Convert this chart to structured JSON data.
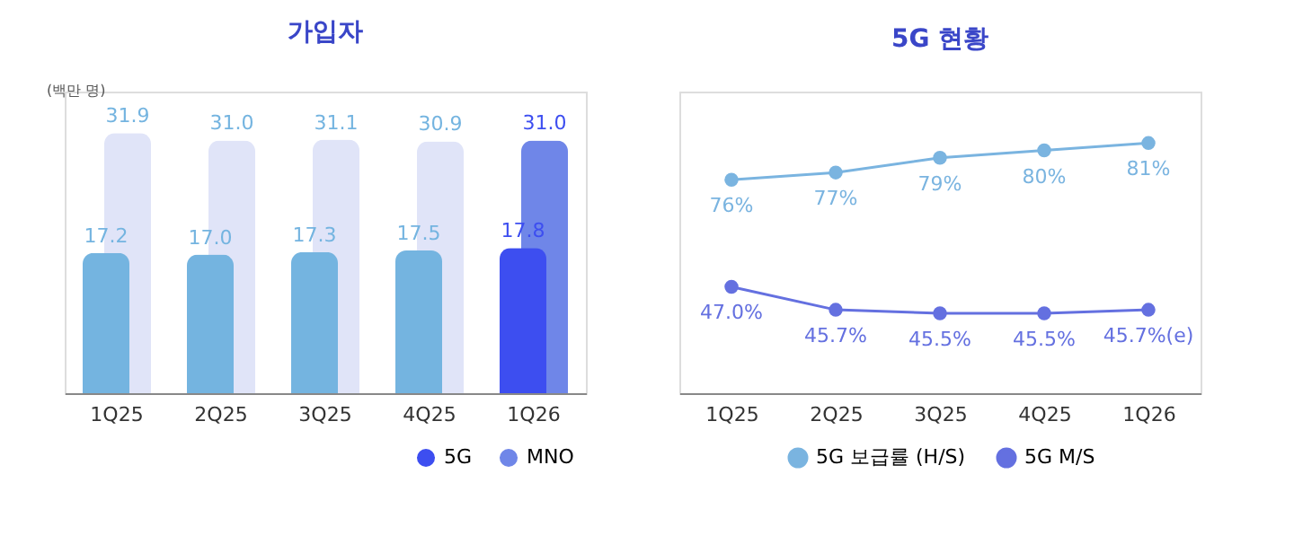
{
  "chart_data": [
    {
      "type": "bar",
      "title": "가입자",
      "annotations": [
        "(백만 명)"
      ],
      "categories": [
        "1Q25",
        "2Q25",
        "3Q25",
        "4Q25",
        "1Q26"
      ],
      "series": [
        {
          "name": "5G",
          "color": "#3d4ef0",
          "colors": [
            "#74b4e0",
            "#74b4e0",
            "#74b4e0",
            "#74b4e0",
            "#3d4ef0"
          ],
          "values": [
            17.2,
            17.0,
            17.3,
            17.5,
            17.8
          ],
          "value_labels": [
            "17.2",
            "17.0",
            "17.3",
            "17.5",
            "17.8"
          ]
        },
        {
          "name": "MNO",
          "color": "#6f86e8",
          "colors": [
            "#e0e4f8",
            "#e0e4f8",
            "#e0e4f8",
            "#e0e4f8",
            "#6f86e8"
          ],
          "values": [
            31.9,
            31.0,
            31.1,
            30.9,
            31.0
          ],
          "value_labels": [
            "31.9",
            "31.0",
            "31.1",
            "30.9",
            "31.0"
          ]
        }
      ],
      "ylim": [
        0,
        37
      ],
      "legend": "bottom right",
      "tick_labels": "x"
    },
    {
      "type": "line",
      "title": "5G 현황",
      "categories": [
        "1Q25",
        "2Q25",
        "3Q25",
        "4Q25",
        "1Q26"
      ],
      "series": [
        {
          "name": "5G 보급률 (H/S)",
          "color": "#7ab4e0",
          "values": [
            76,
            77,
            79,
            80,
            81
          ],
          "value_labels": [
            "76%",
            "77%",
            "79%",
            "80%",
            "81%"
          ]
        },
        {
          "name": "5G M/S",
          "color": "#6470e0",
          "axis": "y2",
          "values": [
            47.0,
            45.7,
            45.5,
            45.5,
            45.7
          ],
          "value_labels": [
            "47.0%",
            "45.7%",
            "45.5%",
            "45.5%",
            "45.7%(e)"
          ]
        }
      ],
      "ylim": [
        47,
        88
      ],
      "y2lim": [
        41,
        58
      ],
      "marker": "circle",
      "legend": "bottom",
      "tick_labels": "x"
    }
  ]
}
